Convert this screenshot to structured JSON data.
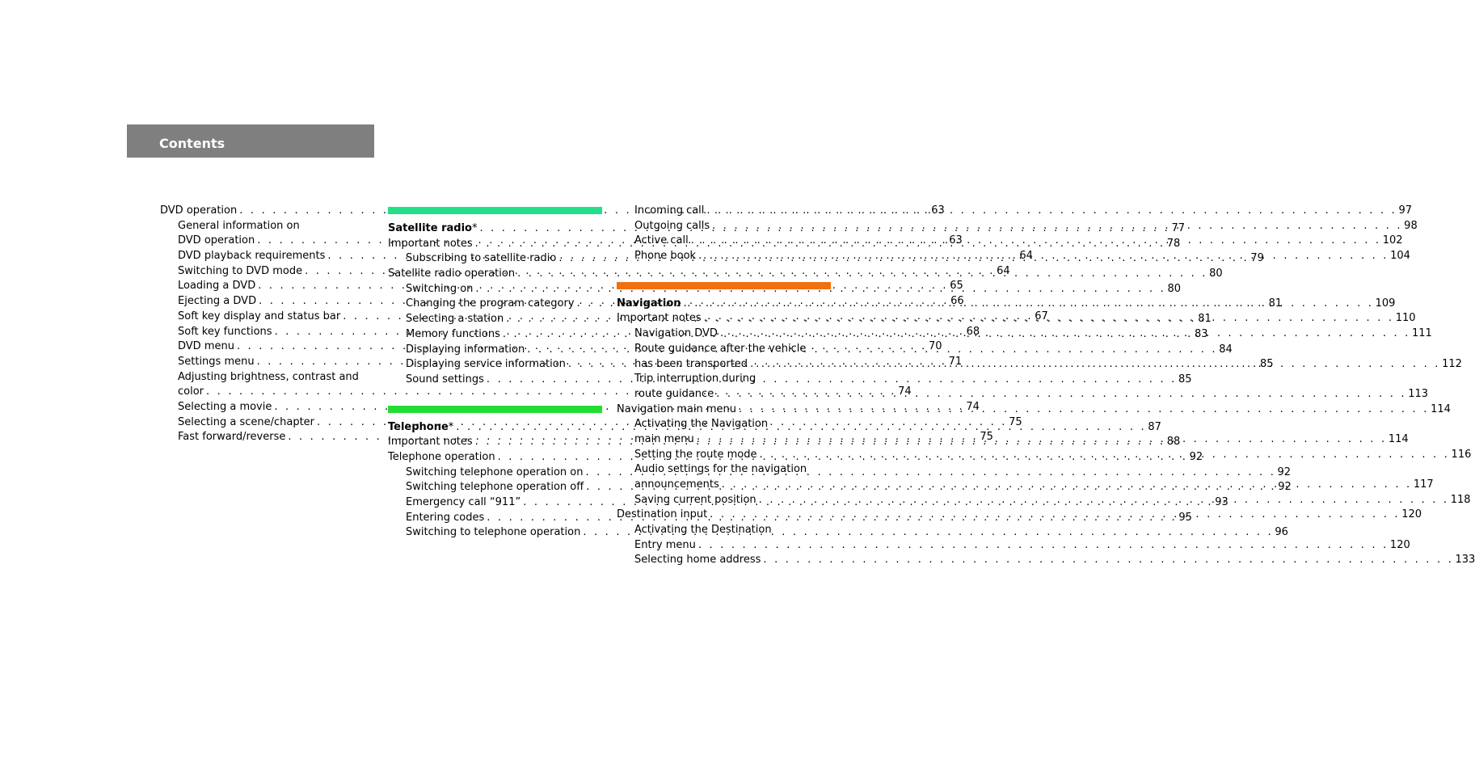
{
  "header": {
    "title": "Contents",
    "color": "#7f7f7f"
  },
  "columns": [
    {
      "sections": [
        {
          "bar_color": null,
          "entries": [
            {
              "label": "DVD operation",
              "page": "63",
              "indent": false,
              "bold": false
            },
            {
              "label": "General information on",
              "page": "",
              "indent": true,
              "bold": false
            },
            {
              "label": "DVD operation",
              "page": "63",
              "indent": true,
              "bold": false
            },
            {
              "label": "DVD playback requirements",
              "page": "64",
              "indent": true,
              "bold": false
            },
            {
              "label": "Switching to DVD mode",
              "page": "64",
              "indent": true,
              "bold": false
            },
            {
              "label": "Loading a DVD",
              "page": "65",
              "indent": true,
              "bold": false
            },
            {
              "label": "Ejecting a DVD",
              "page": "66",
              "indent": true,
              "bold": false
            },
            {
              "label": "Soft key display and status bar",
              "page": "67",
              "indent": true,
              "bold": false
            },
            {
              "label": "Soft key functions",
              "page": "68",
              "indent": true,
              "bold": false
            },
            {
              "label": "DVD menu",
              "page": "70",
              "indent": true,
              "bold": false
            },
            {
              "label": "Settings menu",
              "page": "71",
              "indent": true,
              "bold": false
            },
            {
              "label": "Adjusting brightness, contrast and",
              "page": "",
              "indent": true,
              "bold": false
            },
            {
              "label": "color",
              "page": "74",
              "indent": true,
              "bold": false
            },
            {
              "label": "Selecting a movie",
              "page": "74",
              "indent": true,
              "bold": false
            },
            {
              "label": "Selecting a scene/chapter",
              "page": "75",
              "indent": true,
              "bold": false
            },
            {
              "label": "Fast forward/reverse",
              "page": "75",
              "indent": true,
              "bold": false
            }
          ]
        }
      ]
    },
    {
      "sections": [
        {
          "bar_color": "#22e08a",
          "entries": [
            {
              "label": "Satellite radio",
              "suffix": "*",
              "page": "77",
              "indent": false,
              "bold": true
            },
            {
              "label": "Important notes",
              "page": "78",
              "indent": false,
              "bold": false
            },
            {
              "label": "Subscribing to satellite radio",
              "page": "79",
              "indent": true,
              "bold": false
            },
            {
              "label": "Satellite radio operation",
              "page": "80",
              "indent": false,
              "bold": false
            },
            {
              "label": "Switching on",
              "page": "80",
              "indent": true,
              "bold": false
            },
            {
              "label": "Changing the program category",
              "page": "81",
              "indent": true,
              "bold": false
            },
            {
              "label": "Selecting a station",
              "page": "81",
              "indent": true,
              "bold": false
            },
            {
              "label": "Memory functions",
              "page": "83",
              "indent": true,
              "bold": false
            },
            {
              "label": "Displaying information",
              "page": "84",
              "indent": true,
              "bold": false
            },
            {
              "label": "Displaying service information",
              "page": "85",
              "indent": true,
              "bold": false
            },
            {
              "label": "Sound settings",
              "page": "85",
              "indent": true,
              "bold": false
            }
          ]
        },
        {
          "bar_color": "#22dd33",
          "entries": [
            {
              "label": "Telephone",
              "suffix": "*",
              "page": "87",
              "indent": false,
              "bold": true
            },
            {
              "label": "Important notes",
              "page": "88",
              "indent": false,
              "bold": false
            },
            {
              "label": "Telephone operation",
              "page": "92",
              "indent": false,
              "bold": false
            },
            {
              "label": "Switching telephone operation on",
              "page": "92",
              "indent": true,
              "bold": false
            },
            {
              "label": "Switching telephone operation off",
              "page": "92",
              "indent": true,
              "bold": false
            },
            {
              "label": "Emergency call “911”",
              "page": "93",
              "indent": true,
              "bold": false
            },
            {
              "label": "Entering codes",
              "page": "95",
              "indent": true,
              "bold": false
            },
            {
              "label": "Switching to telephone operation",
              "page": "96",
              "indent": true,
              "bold": false
            }
          ]
        }
      ]
    },
    {
      "sections": [
        {
          "bar_color": null,
          "entries": [
            {
              "label": "Incoming call",
              "page": "97",
              "indent": true,
              "bold": false
            },
            {
              "label": "Outgoing calls",
              "page": "98",
              "indent": true,
              "bold": false
            },
            {
              "label": "Active call",
              "page": "102",
              "indent": true,
              "bold": false
            },
            {
              "label": "Phone book",
              "page": "104",
              "indent": true,
              "bold": false
            }
          ]
        },
        {
          "bar_color": "#f07010",
          "entries": [
            {
              "label": "Navigation",
              "page": "109",
              "indent": false,
              "bold": true
            },
            {
              "label": "Important notes",
              "page": "110",
              "indent": false,
              "bold": false
            },
            {
              "label": "Navigation DVD",
              "page": "111",
              "indent": true,
              "bold": false
            },
            {
              "label": "Route guidance after the vehicle",
              "page": "",
              "indent": true,
              "bold": false
            },
            {
              "label": "has been transported",
              "page": "112",
              "indent": true,
              "bold": false
            },
            {
              "label": "Trip interruption during",
              "page": "",
              "indent": true,
              "bold": false
            },
            {
              "label": "route guidance",
              "page": "113",
              "indent": true,
              "bold": false
            },
            {
              "label": "Navigation main menu",
              "page": "114",
              "indent": false,
              "bold": false
            },
            {
              "label": "Activating the Navigation",
              "page": "",
              "indent": true,
              "bold": false
            },
            {
              "label": "main menu",
              "page": "114",
              "indent": true,
              "bold": false
            },
            {
              "label": "Setting the route mode",
              "page": "116",
              "indent": true,
              "bold": false
            },
            {
              "label": "Audio settings for the navigation",
              "page": "",
              "indent": true,
              "bold": false
            },
            {
              "label": "announcements",
              "page": "117",
              "indent": true,
              "bold": false
            },
            {
              "label": "Saving current position",
              "page": "118",
              "indent": true,
              "bold": false
            },
            {
              "label": "Destination input",
              "page": "120",
              "indent": false,
              "bold": false
            },
            {
              "label": "Activating the Destination",
              "page": "",
              "indent": true,
              "bold": false
            },
            {
              "label": "Entry menu",
              "page": "120",
              "indent": true,
              "bold": false
            },
            {
              "label": "Selecting home address",
              "page": "133",
              "indent": true,
              "bold": false
            }
          ]
        }
      ]
    }
  ]
}
